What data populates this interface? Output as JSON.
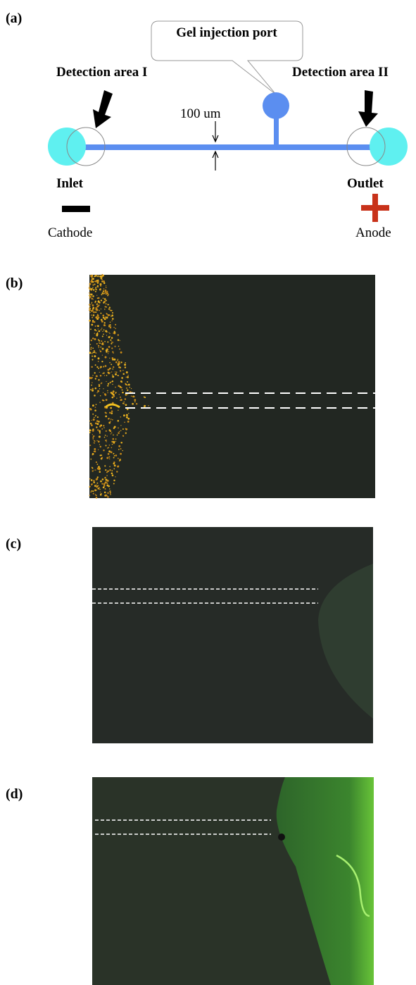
{
  "panels": [
    {
      "label": "(a)",
      "callout": "Gel injection port",
      "detection_left": "Detection area I",
      "detection_right": "Detection area II",
      "width_label": "100 um",
      "inlet": "Inlet",
      "outlet": "Outlet",
      "cathode": "Cathode",
      "anode": "Anode"
    },
    {
      "label": "(b)"
    },
    {
      "label": "(c)"
    },
    {
      "label": "(d)"
    }
  ]
}
